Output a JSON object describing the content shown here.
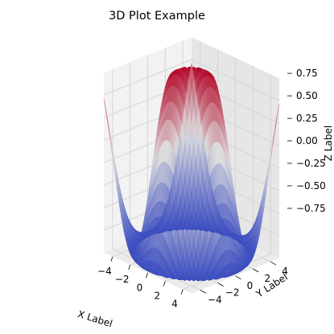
{
  "chart_data": {
    "type": "surface3d",
    "title": "3D Plot Example",
    "xlabel": "X Label",
    "ylabel": "Y Label",
    "zlabel": "Z Label",
    "function": "z = sin(sqrt(x^2 + y^2))",
    "x_range": [
      -5,
      5
    ],
    "y_range": [
      -5,
      5
    ],
    "z_range": [
      -1,
      1
    ],
    "x_step": 0.25,
    "y_step": 0.25,
    "colormap": "coolwarm",
    "colormap_stops": [
      "#3b4cc0",
      "#dddddd",
      "#b40426"
    ],
    "x_ticks": [
      -4,
      -2,
      0,
      2,
      4
    ],
    "y_ticks": [
      -4,
      -2,
      0,
      2,
      4
    ],
    "z_ticks": [
      -0.75,
      -0.5,
      -0.25,
      0.0,
      0.25,
      0.5,
      0.75
    ],
    "x_tick_labels": [
      "−4",
      "−2",
      "0",
      "2",
      "4"
    ],
    "y_tick_labels": [
      "−4",
      "−2",
      "0",
      "2",
      "4"
    ],
    "z_tick_labels": [
      "−0.75",
      "−0.50",
      "−0.25",
      "0.00",
      "0.25",
      "0.50",
      "0.75"
    ],
    "grid": true,
    "pane_color": "#f2f2f2",
    "grid_color": "#cfcfcf"
  }
}
